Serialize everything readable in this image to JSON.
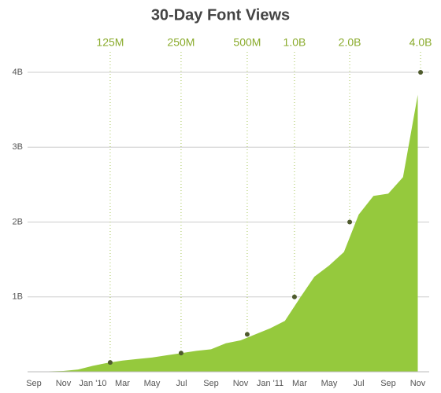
{
  "chart_data": {
    "type": "area",
    "title": "30-Day Font Views",
    "categories": [
      "Sep",
      null,
      "Nov",
      null,
      "Jan '10",
      null,
      "Mar",
      null,
      "May",
      null,
      "Jul",
      null,
      "Sep",
      null,
      "Nov",
      null,
      "Jan '11",
      null,
      "Mar",
      null,
      "May",
      null,
      "Jul",
      null,
      "Sep",
      null,
      "Nov"
    ],
    "values": [
      0.0,
      0.005,
      0.01,
      0.03,
      0.08,
      0.12,
      0.15,
      0.17,
      0.19,
      0.22,
      0.25,
      0.28,
      0.3,
      0.38,
      0.42,
      0.5,
      0.58,
      0.68,
      0.98,
      1.27,
      1.42,
      1.6,
      2.1,
      2.35,
      2.38,
      2.6,
      3.7
    ],
    "color": "#95c93d",
    "ylim": [
      0,
      4.2
    ],
    "yticks": [
      {
        "value": 1,
        "label": "1B"
      },
      {
        "value": 2,
        "label": "2B"
      },
      {
        "value": 3,
        "label": "3B"
      },
      {
        "value": 4,
        "label": "4B"
      }
    ],
    "grid": true,
    "milestones": [
      {
        "label": "125M",
        "value": 0.125,
        "x": 5.17
      },
      {
        "label": "250M",
        "value": 0.25,
        "x": 9.97
      },
      {
        "label": "500M",
        "value": 0.5,
        "x": 14.45
      },
      {
        "label": "1.0B",
        "value": 1.0,
        "x": 17.65
      },
      {
        "label": "2.0B",
        "value": 2.0,
        "x": 21.39
      },
      {
        "label": "4.0B",
        "value": 4.0,
        "x": 26.19
      }
    ]
  }
}
